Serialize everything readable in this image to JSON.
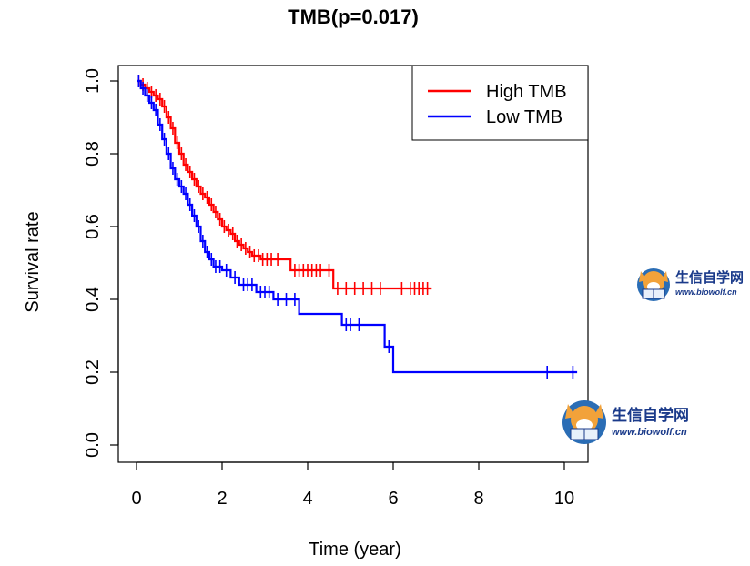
{
  "chart_data": {
    "type": "line",
    "title": "TMB(p=0.017)",
    "xlabel": "Time (year)",
    "ylabel": "Survival rate",
    "xlim": [
      -0.2,
      10.5
    ],
    "ylim": [
      -0.06,
      1.06
    ],
    "x_ticks": [
      "0",
      "2",
      "4",
      "6",
      "8",
      "10"
    ],
    "x_tick_values": [
      0,
      2,
      4,
      6,
      8,
      10
    ],
    "y_ticks": [
      "0.0",
      "0.2",
      "0.4",
      "0.6",
      "0.8",
      "1.0"
    ],
    "y_tick_values": [
      0,
      0.2,
      0.4,
      0.6,
      0.8,
      1.0
    ],
    "grid": false,
    "legend_position": "top-right",
    "series": [
      {
        "name": "High TMB",
        "color": "#ff0000",
        "steps": [
          [
            0,
            1.0
          ],
          [
            0.1,
            0.99
          ],
          [
            0.2,
            0.98
          ],
          [
            0.3,
            0.97
          ],
          [
            0.4,
            0.96
          ],
          [
            0.5,
            0.95
          ],
          [
            0.6,
            0.93
          ],
          [
            0.7,
            0.9
          ],
          [
            0.8,
            0.87
          ],
          [
            0.9,
            0.83
          ],
          [
            1.0,
            0.8
          ],
          [
            1.1,
            0.77
          ],
          [
            1.2,
            0.75
          ],
          [
            1.3,
            0.73
          ],
          [
            1.4,
            0.71
          ],
          [
            1.5,
            0.69
          ],
          [
            1.6,
            0.68
          ],
          [
            1.7,
            0.66
          ],
          [
            1.8,
            0.64
          ],
          [
            1.9,
            0.62
          ],
          [
            2.0,
            0.6
          ],
          [
            2.1,
            0.59
          ],
          [
            2.2,
            0.58
          ],
          [
            2.3,
            0.56
          ],
          [
            2.4,
            0.55
          ],
          [
            2.5,
            0.54
          ],
          [
            2.6,
            0.53
          ],
          [
            2.7,
            0.52
          ],
          [
            2.9,
            0.51
          ],
          [
            3.6,
            0.48
          ],
          [
            4.6,
            0.43
          ],
          [
            6.9,
            0.43
          ]
        ],
        "censor_times": [
          0.05,
          0.15,
          0.25,
          0.35,
          0.45,
          0.55,
          0.65,
          0.75,
          0.85,
          0.95,
          1.05,
          1.15,
          1.25,
          1.35,
          1.45,
          1.55,
          1.65,
          1.75,
          1.85,
          1.95,
          2.05,
          2.15,
          2.25,
          2.35,
          2.45,
          2.55,
          2.65,
          2.75,
          2.85,
          2.95,
          3.05,
          3.15,
          3.3,
          3.7,
          3.8,
          3.9,
          4.0,
          4.1,
          4.2,
          4.3,
          4.5,
          4.7,
          4.9,
          5.1,
          5.3,
          5.5,
          5.7,
          6.2,
          6.4,
          6.5,
          6.6,
          6.7,
          6.8
        ]
      },
      {
        "name": "Low TMB",
        "color": "#0000ff",
        "steps": [
          [
            0,
            1.0
          ],
          [
            0.1,
            0.98
          ],
          [
            0.2,
            0.96
          ],
          [
            0.3,
            0.94
          ],
          [
            0.4,
            0.92
          ],
          [
            0.5,
            0.88
          ],
          [
            0.6,
            0.84
          ],
          [
            0.7,
            0.8
          ],
          [
            0.8,
            0.76
          ],
          [
            0.9,
            0.73
          ],
          [
            1.0,
            0.71
          ],
          [
            1.1,
            0.69
          ],
          [
            1.2,
            0.66
          ],
          [
            1.3,
            0.63
          ],
          [
            1.4,
            0.6
          ],
          [
            1.5,
            0.56
          ],
          [
            1.6,
            0.53
          ],
          [
            1.7,
            0.51
          ],
          [
            1.8,
            0.49
          ],
          [
            2.0,
            0.48
          ],
          [
            2.2,
            0.46
          ],
          [
            2.4,
            0.44
          ],
          [
            2.8,
            0.42
          ],
          [
            3.2,
            0.4
          ],
          [
            3.8,
            0.36
          ],
          [
            4.8,
            0.33
          ],
          [
            5.8,
            0.27
          ],
          [
            6.0,
            0.2
          ],
          [
            10.3,
            0.2
          ]
        ],
        "censor_times": [
          0.05,
          0.15,
          0.25,
          0.35,
          0.45,
          0.55,
          0.65,
          0.75,
          0.85,
          0.95,
          1.05,
          1.15,
          1.25,
          1.35,
          1.45,
          1.55,
          1.65,
          1.75,
          1.85,
          1.95,
          2.1,
          2.3,
          2.5,
          2.6,
          2.7,
          2.9,
          3.0,
          3.1,
          3.3,
          3.5,
          3.7,
          4.9,
          5.0,
          5.2,
          5.9,
          9.6,
          10.2
        ]
      }
    ]
  },
  "watermark": {
    "title": "生信自学网",
    "url": "www.biowolf.cn",
    "title_color": "#1a3a8a",
    "url_color": "#1a3a8a"
  }
}
